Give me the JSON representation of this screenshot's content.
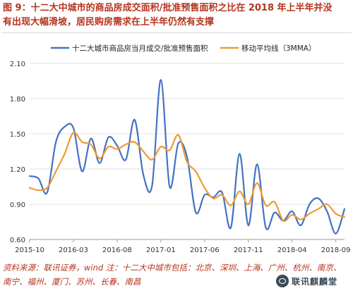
{
  "figure": {
    "title_line1": "图 9：十二大中城市的商品房成交面积/批准预售面积之比在 2018 年上半年并没",
    "title_line2": "有出现大幅滑坡，居民购房需求在上半年仍然有支撑"
  },
  "footnote": {
    "line1": "资料来源：联讯证券，wind 注：十二大中城市包括：北京、深圳、上海、广州、杭州、南京、",
    "line2": "南宁、福州、厦门、苏州、长春、南昌"
  },
  "watermark": {
    "text": "联讯麒麟堂"
  },
  "colors": {
    "series1": "#4472c4",
    "series2": "#ed9b33",
    "title": "#b5341e",
    "grid": "#e0e0e0"
  },
  "chart_data": {
    "type": "line",
    "title": "",
    "xlabel": "",
    "ylabel": "",
    "ylim": [
      0.6,
      2.1
    ],
    "yticks": [
      "2.10",
      "1.80",
      "1.50",
      "1.20",
      "0.90",
      "0.60"
    ],
    "xticks": [
      "2015-10",
      "2016-03",
      "2016-08",
      "2017-01",
      "2017-06",
      "2017-11",
      "2018-04",
      "2018-09"
    ],
    "legend_position": "top",
    "grid": "horizontal",
    "x": [
      "2015-10",
      "2015-11",
      "2015-12",
      "2016-01",
      "2016-02",
      "2016-03",
      "2016-04",
      "2016-05",
      "2016-06",
      "2016-07",
      "2016-08",
      "2016-09",
      "2016-10",
      "2016-11",
      "2016-12",
      "2017-01",
      "2017-02",
      "2017-03",
      "2017-04",
      "2017-05",
      "2017-06",
      "2017-07",
      "2017-08",
      "2017-09",
      "2017-10",
      "2017-11",
      "2017-12",
      "2018-01",
      "2018-02",
      "2018-03",
      "2018-04",
      "2018-05",
      "2018-06",
      "2018-07",
      "2018-08",
      "2018-09",
      "2018-10"
    ],
    "series": [
      {
        "name": "十二大城市商品房当月成交/批准预售面积",
        "values": [
          1.14,
          1.12,
          1.0,
          1.43,
          1.56,
          1.55,
          1.18,
          1.46,
          1.25,
          1.47,
          1.4,
          1.28,
          1.62,
          1.15,
          1.06,
          1.96,
          1.05,
          1.42,
          1.3,
          0.83,
          0.98,
          0.96,
          1.0,
          0.7,
          1.33,
          0.72,
          1.24,
          0.7,
          0.83,
          0.76,
          0.84,
          0.72,
          0.9,
          0.95,
          0.84,
          0.65,
          0.86
        ]
      },
      {
        "name": "移动平均线（3MMA）",
        "values": [
          1.04,
          1.02,
          1.04,
          1.18,
          1.33,
          1.51,
          1.43,
          1.41,
          1.29,
          1.39,
          1.37,
          1.41,
          1.43,
          1.35,
          1.28,
          1.39,
          1.36,
          1.49,
          1.26,
          1.18,
          1.04,
          0.95,
          0.98,
          0.89,
          1.01,
          0.9,
          1.08,
          0.89,
          0.92,
          0.76,
          0.81,
          0.77,
          0.82,
          0.86,
          0.9,
          0.82,
          0.79
        ]
      }
    ]
  }
}
